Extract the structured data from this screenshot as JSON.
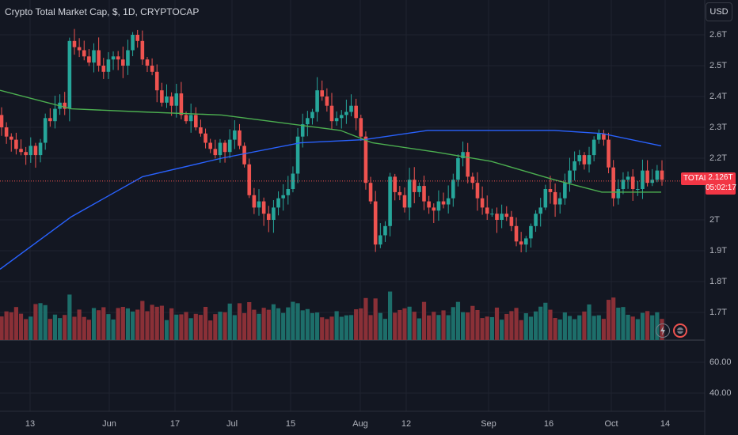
{
  "title": "Crypto Total Market Cap, $, 1D, CRYPTOCAP",
  "currency_button": "USD",
  "last_price": {
    "symbol": "TOTAL",
    "value": "2.126T",
    "countdown": "05:02:17"
  },
  "price_axis_labels": [
    "2.6T",
    "2.5T",
    "2.4T",
    "2.3T",
    "2.2T",
    "2T",
    "1.9T",
    "1.8T",
    "1.7T"
  ],
  "volume_axis_labels": [
    "60.00",
    "40.00"
  ],
  "time_axis_labels": [
    "13",
    "Jun",
    "17",
    "Jul",
    "15",
    "Aug",
    "12",
    "Sep",
    "16",
    "Oct",
    "14"
  ],
  "icons": [
    "lightning-icon",
    "events-icon"
  ],
  "colors": {
    "up": "#26a69a",
    "down": "#ef5350",
    "ma_long": "#2962ff",
    "ma_short": "#4caf50",
    "background": "#131722"
  },
  "chart_data": {
    "type": "candlestick",
    "title": "Crypto Total Market Cap, $, 1D, CRYPTOCAP",
    "x_range": [
      "2024-05-05",
      "2024-10-14"
    ],
    "y_unit": "T USD",
    "ylim": [
      1.6,
      2.65
    ],
    "last_value": 2.126,
    "grid": true,
    "series_ma_long_approx": [
      [
        0,
        1.84
      ],
      [
        90,
        2.01
      ],
      [
        180,
        2.14
      ],
      [
        280,
        2.2
      ],
      [
        380,
        2.25
      ],
      [
        460,
        2.26
      ],
      [
        540,
        2.29
      ],
      [
        620,
        2.29
      ],
      [
        700,
        2.29
      ],
      [
        760,
        2.28
      ],
      [
        835,
        2.24
      ]
    ],
    "series_ma_short_approx": [
      [
        0,
        2.42
      ],
      [
        90,
        2.36
      ],
      [
        180,
        2.35
      ],
      [
        280,
        2.34
      ],
      [
        340,
        2.32
      ],
      [
        430,
        2.29
      ],
      [
        470,
        2.25
      ],
      [
        550,
        2.22
      ],
      [
        620,
        2.19
      ],
      [
        700,
        2.13
      ],
      [
        760,
        2.09
      ],
      [
        835,
        2.09
      ]
    ],
    "closes_approx": [
      2.3,
      2.27,
      2.26,
      2.23,
      2.22,
      2.21,
      2.24,
      2.21,
      2.25,
      2.33,
      2.32,
      2.36,
      2.38,
      2.36,
      2.58,
      2.56,
      2.55,
      2.53,
      2.51,
      2.55,
      2.5,
      2.48,
      2.52,
      2.53,
      2.52,
      2.5,
      2.55,
      2.6,
      2.58,
      2.52,
      2.5,
      2.48,
      2.42,
      2.38,
      2.4,
      2.37,
      2.41,
      2.34,
      2.32,
      2.34,
      2.3,
      2.28,
      2.25,
      2.23,
      2.21,
      2.25,
      2.22,
      2.26,
      2.29,
      2.24,
      2.18,
      2.08,
      2.04,
      2.06,
      2.02,
      2.0,
      2.04,
      2.07,
      2.08,
      2.1,
      2.15,
      2.27,
      2.31,
      2.33,
      2.35,
      2.42,
      2.4,
      2.37,
      2.32,
      2.33,
      2.34,
      2.35,
      2.37,
      2.33,
      2.27,
      2.12,
      2.06,
      1.92,
      1.95,
      1.98,
      2.14,
      2.09,
      2.08,
      2.04,
      2.13,
      2.09,
      2.11,
      2.06,
      2.04,
      2.03,
      2.06,
      2.05,
      2.07,
      2.13,
      2.2,
      2.22,
      2.14,
      2.12,
      2.07,
      2.04,
      2.02,
      2.02,
      2.0,
      2.02,
      2.01,
      1.98,
      1.93,
      1.92,
      1.94,
      1.98,
      2.02,
      2.04,
      2.1,
      2.09,
      2.05,
      2.07,
      2.12,
      2.16,
      2.19,
      2.21,
      2.18,
      2.21,
      2.26,
      2.28,
      2.26,
      2.17,
      2.07,
      2.1,
      2.13,
      2.14,
      2.1,
      2.1,
      2.16,
      2.12,
      2.13,
      2.16,
      2.13
    ]
  }
}
